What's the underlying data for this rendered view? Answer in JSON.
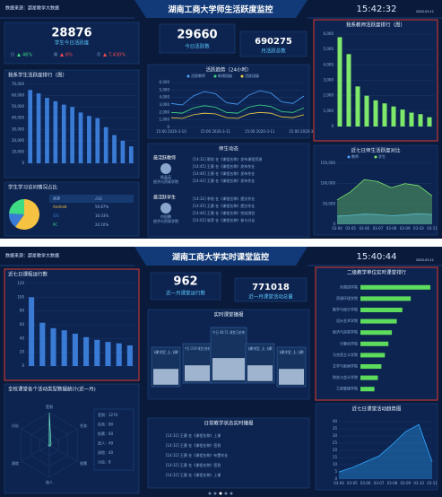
{
  "dashboards": [
    {
      "source": "数据来源：超星教学大数据",
      "title": "湖南工商大学师生活跃度监控",
      "time": "15:42:32",
      "date": "2020.03.11",
      "stats": [
        {
          "value": "28876",
          "label": "学生今日活跃度"
        },
        {
          "value": "29660",
          "label": "今日活跃数"
        },
        {
          "value": "690275",
          "label": "月活跃总数"
        }
      ],
      "trends": [
        {
          "label": "日",
          "value": "46%",
          "color": "#3ddc84"
        },
        {
          "label": "周",
          "value": "6%",
          "color": "#ff4d4f"
        },
        {
          "label": "月",
          "value": "7,430%",
          "color": "#ff4d4f"
        }
      ],
      "student_rank": {
        "type": "bar",
        "title": "我系学生活跃度排行（周）",
        "categories": [
          null,
          null,
          null,
          null,
          null,
          null,
          null,
          null,
          null,
          null,
          null,
          null,
          null
        ],
        "values": [
          65000,
          62000,
          58000,
          55000,
          52000,
          50000,
          45000,
          42000,
          40000,
          32000,
          25000,
          20000,
          15000
        ],
        "color": "#3a7bd5",
        "ylim": [
          0,
          70000
        ],
        "yticks": [
          0,
          {
            "value": 10000,
            "label": "10,000"
          },
          {
            "value": 20000,
            "label": "20,000"
          },
          {
            "value": 30000,
            "label": "30,000"
          },
          {
            "value": 40000,
            "label": "40,000"
          },
          {
            "value": 50000,
            "label": "50,000"
          },
          {
            "value": 60000,
            "label": "60,000"
          },
          {
            "value": 70000,
            "label": "70,000"
          }
        ]
      },
      "activity_trend": {
        "type": "line",
        "title": "活跃趋势（24小时）",
        "categories": [
          "15:00 2020-3-10",
          null,
          null,
          null,
          "15:00 2020-3-11",
          null,
          null,
          null,
          "15:00 2020-3-11",
          null,
          null,
          null,
          "15:00 2020-3-11"
        ],
        "series": [
          {
            "name": "活跃教师",
            "color": "#4aa3ff",
            "values": [
              3200,
              3000,
              4200,
              4800,
              4500,
              3300,
              3100,
              4300,
              4900,
              4600,
              3400,
              3200,
              4200
            ]
          },
          {
            "name": "新增班级",
            "color": "#3ddc84",
            "values": [
              2000,
              1900,
              2600,
              2900,
              2700,
              2000,
              1900,
              2700,
              3000,
              2800,
              2100,
              2000,
              2600
            ]
          },
          {
            "name": "活跃班级",
            "color": "#f5d142",
            "values": [
              1300,
              1200,
              1700,
              1900,
              1800,
              1300,
              1200,
              1800,
              2000,
              1900,
              1400,
              1300,
              1700
            ]
          }
        ],
        "ylim": [
          0,
          6000
        ],
        "yticks": [
          0,
          {
            "value": 1000,
            "label": "1,000"
          },
          {
            "value": 2000,
            "label": "2,000"
          },
          {
            "value": 3000,
            "label": "3,000"
          },
          {
            "value": 4000,
            "label": "4,000"
          },
          {
            "value": 5000,
            "label": "5,000"
          },
          {
            "value": 6000,
            "label": "6,000"
          }
        ]
      },
      "teacher_rank": {
        "type": "bar",
        "title": "我系教师活跃度排行（周）",
        "categories": [
          null,
          null,
          null,
          null,
          null,
          null,
          null,
          null,
          null,
          null,
          null
        ],
        "values": [
          5800,
          4700,
          2600,
          2000,
          1700,
          1500,
          1300,
          1100,
          900,
          800,
          600
        ],
        "color": "#7ee86a",
        "ylim": [
          0,
          6000
        ],
        "yticks": [
          0,
          {
            "value": 1000,
            "label": "1,000"
          },
          {
            "value": 2000,
            "label": "2,000"
          },
          {
            "value": 3000,
            "label": "3,000"
          },
          {
            "value": 4000,
            "label": "4,000"
          },
          {
            "value": 5000,
            "label": "5,000"
          },
          {
            "value": 6000,
            "label": "6,000"
          }
        ]
      },
      "access": {
        "type": "pie",
        "title": "学生学习访问情况占比",
        "headers": [
          "来源",
          "占比"
        ],
        "categories": [
          "Android",
          "iOS",
          "PC"
        ],
        "values": [
          59.87,
          16.03,
          24.1
        ],
        "value_labels": [
          "59.87%",
          "16.03%",
          "24.10%"
        ],
        "colors": [
          "#f5c242",
          "#3a7bd5",
          "#3ddc84"
        ]
      },
      "feed": {
        "title": "师生动态",
        "groups": [
          {
            "heading": "最活跃教师",
            "name": "杨晶英",
            "role": "经济与贸易学院",
            "items": [
              "[14:32] 郭欣 在《课程名称》发布课程资源",
              "[14:45] 王黄 在《课程名称》发布作业",
              "[14:46] 王黄 在《课程名称》发布作业",
              "[14:42] 王黄 在《课程名称》发布作业"
            ]
          },
          {
            "heading": "最活跃学生",
            "name": "何阳鹏",
            "role": "经济与贸易学院",
            "items": [
              "[14:32] 李锐 在《课程名称》提交作业",
              "[14:45] 王黄 在《课程名称》提交作业",
              "[14:46] 王黄 在《课程名称》完成测验",
              "[14:03] 张菲 在《课程名称》参与讨论"
            ]
          }
        ]
      },
      "compare": {
        "type": "area",
        "title": "近七日师生活跃度对比",
        "categories": [
          "03-04",
          "03-05",
          "03-06",
          "03-07",
          "03-08",
          "03-09",
          "03-10",
          "03-11"
        ],
        "series": [
          {
            "name": "教师",
            "color": "#4aa3ff",
            "values": [
              20000,
              22000,
              25000,
              24000,
              21000,
              23000,
              26000,
              24000
            ]
          },
          {
            "name": "学生",
            "color": "#7ee86a",
            "values": [
              60000,
              80000,
              110000,
              105000,
              90000,
              100000,
              95000,
              70000
            ]
          }
        ],
        "ylim": [
          0,
          150000
        ],
        "yticks": [
          0,
          {
            "value": 50000,
            "label": "50,000"
          },
          {
            "value": 100000,
            "label": "100,000"
          },
          {
            "value": 150000,
            "label": "150,000"
          }
        ]
      }
    },
    {
      "source": "数据来源：超星教学大数据",
      "title": "湖南工商大学实时课堂监控",
      "time": "15:40:44",
      "date": "2020.03.11",
      "stats": [
        {
          "value": "962",
          "label": "近一月课堂运行数"
        },
        {
          "value": "771018",
          "label": "近一月课堂活动总量"
        }
      ],
      "course_runs": {
        "type": "bar",
        "title": "近七日课程运行数",
        "categories": [
          null,
          null,
          null,
          null,
          null,
          null,
          null,
          null,
          null,
          null
        ],
        "values": [
          100,
          63,
          55,
          52,
          47,
          42,
          38,
          35,
          33,
          30
        ],
        "color": "#3a7bd5",
        "ylim": [
          0,
          120
        ],
        "yticks": [
          0,
          20,
          40,
          60,
          80,
          100,
          120
        ]
      },
      "broadcast": {
        "title": "实时课堂播报",
        "cards": [
          "课程上课",
          "今日 15:09 课堂已结束",
          "今日 08:51 课堂已结束",
          "课程上课",
          "课程上课"
        ]
      },
      "dept_rank": {
        "type": "hbar",
        "title": "二级教学单位实时课堂排行",
        "categories": [
          "外国语学院",
          "资源环境学院",
          "数学与统计学院",
          "设计艺术学院",
          "经济与贸易学院",
          "计算机学院",
          "马克思主义学院",
          "文学与新闻学院",
          "财务与会计学院",
          "工商管理学院"
        ],
        "values": [
          100,
          72,
          60,
          52,
          45,
          40,
          35,
          30,
          25,
          20
        ],
        "color": "#5cdb5c"
      },
      "activity_types": {
        "type": "radar",
        "title": "全校课堂各个活动类型数据统计(近一月)",
        "categories": [
          "签到",
          "任务",
          "投票",
          "选人",
          "测验",
          "讨论"
        ],
        "values": [
          1274,
          80,
          60,
          49,
          40,
          8
        ],
        "value_labels": [
          "签到：1274",
          "任务：80",
          "投票：60",
          "选人：49",
          "测验：40",
          "讨论：8"
        ]
      },
      "daily": {
        "title": "日常教学状态实时播报",
        "items": [
          "[14:32] 王黄 在《课程名称》上课",
          "[14:32] 王黄 在《课程名称》签到",
          "[14:32] 王黄 在《课程名称》布置作业",
          "[14:32] 王黄 在《课程名称》签到",
          "[14:32] 王黄 在《课程名称》上课"
        ]
      },
      "activity_trend": {
        "type": "area",
        "title": "近七日课堂活动趋势图",
        "categories": [
          "03-04",
          "03-05",
          "03-06",
          "03-07",
          "03-08",
          "03-09",
          "03-10",
          "03-11"
        ],
        "series": [
          {
            "name": "课堂活动",
            "color": "#2fa8ff",
            "values": [
              5,
              8,
              12,
              16,
              24,
              33,
              38,
              12
            ]
          }
        ],
        "ylim": [
          0,
          40
        ],
        "yticks": [
          0,
          5,
          10,
          15,
          20,
          25,
          30,
          35,
          40
        ]
      }
    }
  ]
}
